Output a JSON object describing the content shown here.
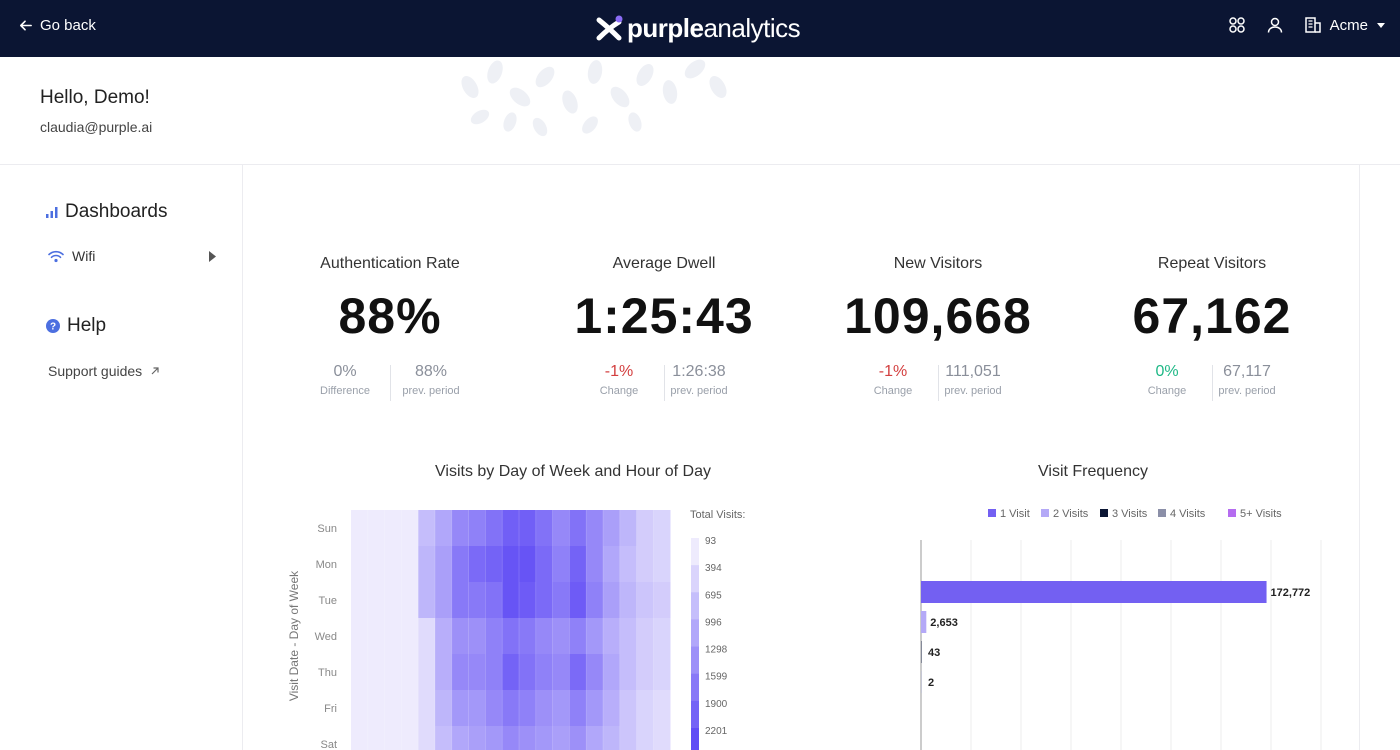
{
  "topbar": {
    "go_back": "Go back",
    "logo_bold": "purple",
    "logo_light": "analytics",
    "account_name": "Acme",
    "icons": [
      "apps-icon",
      "user-icon",
      "building-icon",
      "caret-down-icon"
    ]
  },
  "greeting": {
    "title": "Hello, Demo!",
    "email": "claudia@purple.ai"
  },
  "sidebar": {
    "dashboards_label": "Dashboards",
    "wifi_label": "Wifi",
    "help_label": "Help",
    "support_label": "Support guides"
  },
  "kpis": [
    {
      "label": "Authentication Rate",
      "value": "88%",
      "change": "0%",
      "change_label": "Difference",
      "prev": "88%",
      "prev_label": "prev. period",
      "change_state": "neutral"
    },
    {
      "label": "Average Dwell",
      "value": "1:25:43",
      "change": "-1%",
      "change_label": "Change",
      "prev": "1:26:38",
      "prev_label": "prev. period",
      "change_state": "negative"
    },
    {
      "label": "New Visitors",
      "value": "109,668",
      "change": "-1%",
      "change_label": "Change",
      "prev": "111,051",
      "prev_label": "prev. period",
      "change_state": "negative"
    },
    {
      "label": "Repeat Visitors",
      "value": "67,162",
      "change": "0%",
      "change_label": "Change",
      "prev": "67,117",
      "prev_label": "prev. period",
      "change_state": "positive"
    }
  ],
  "colors": {
    "topbar": "#0b1533",
    "accent": "#5b4bf5",
    "negative": "#d33f3f",
    "positive": "#1eb886"
  },
  "chart_data": [
    {
      "type": "heatmap",
      "title": "Visits by Day of Week and Hour of Day",
      "ylabel": "Visit Date - Day of Week",
      "y_categories": [
        "Sun",
        "Mon",
        "Tue",
        "Wed",
        "Thu",
        "Fri",
        "Sat"
      ],
      "legend_title": "Total Visits:",
      "scale_ticks": [
        93,
        394,
        695,
        996,
        1298,
        1599,
        1900,
        2201
      ],
      "scale_min": 93,
      "scale_max": 2201,
      "values": [
        [
          93,
          93,
          93,
          93,
          700,
          1000,
          1400,
          1500,
          1700,
          1950,
          1950,
          1700,
          1400,
          1700,
          1400,
          1100,
          800,
          500,
          400
        ],
        [
          93,
          93,
          93,
          93,
          800,
          1100,
          1600,
          1800,
          1900,
          2100,
          2100,
          1800,
          1500,
          1900,
          1400,
          1000,
          700,
          500,
          400
        ],
        [
          93,
          93,
          93,
          93,
          800,
          1100,
          1600,
          1600,
          1700,
          2100,
          2000,
          1800,
          1600,
          2000,
          1500,
          1100,
          800,
          600,
          500
        ],
        [
          93,
          93,
          93,
          93,
          300,
          900,
          1300,
          1300,
          1500,
          1700,
          1600,
          1400,
          1300,
          1500,
          1200,
          900,
          700,
          500,
          400
        ],
        [
          93,
          93,
          93,
          93,
          300,
          900,
          1400,
          1400,
          1500,
          1900,
          1700,
          1500,
          1400,
          1800,
          1400,
          1000,
          700,
          500,
          400
        ],
        [
          93,
          93,
          93,
          93,
          300,
          800,
          1200,
          1200,
          1400,
          1600,
          1500,
          1300,
          1200,
          1500,
          1200,
          900,
          600,
          400,
          300
        ],
        [
          93,
          93,
          93,
          93,
          300,
          700,
          1000,
          1100,
          1200,
          1400,
          1300,
          1200,
          1100,
          1300,
          1000,
          800,
          600,
          400,
          300
        ]
      ]
    },
    {
      "type": "bar",
      "orientation": "horizontal",
      "title": "Visit Frequency",
      "legend": [
        {
          "name": "1 Visit",
          "color": "#7360f2"
        },
        {
          "name": "2 Visits",
          "color": "#b4a9f7"
        },
        {
          "name": "3 Visits",
          "color": "#0b1533"
        },
        {
          "name": "4 Visits",
          "color": "#8b8fa8"
        },
        {
          "name": "5+ Visits",
          "color": "#b56cf0"
        }
      ],
      "legend_position": "top-right",
      "values": [
        172772,
        2653,
        43,
        2
      ],
      "value_labels": [
        "172,772",
        "2,653",
        "43",
        "2"
      ],
      "xlim": [
        0,
        200000
      ],
      "grid": true
    }
  ]
}
